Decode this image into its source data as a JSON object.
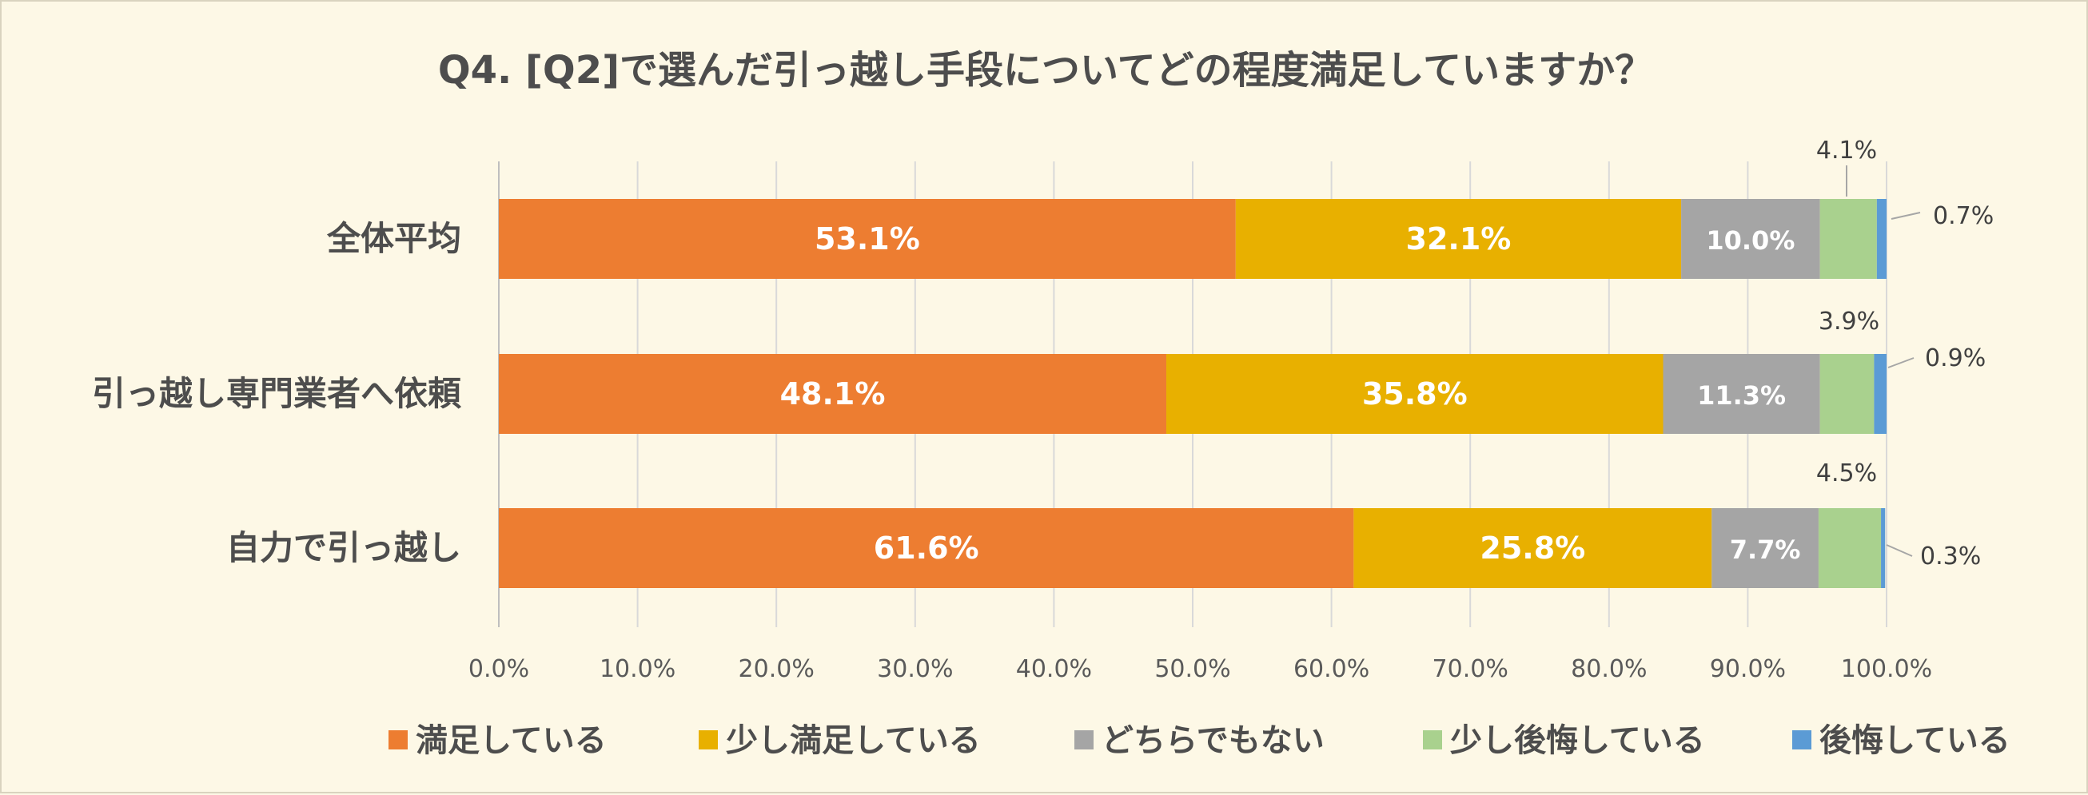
{
  "chart_data": {
    "type": "bar",
    "orientation": "horizontal",
    "stacked": true,
    "title": "Q4. [Q2]で選んだ引っ越し手段についてどの程度満足していますか？",
    "categories": [
      "全体平均",
      "引っ越し専門業者へ依頼",
      "自力で引っ越し"
    ],
    "series": [
      {
        "name": "満足している",
        "color": "#ed7d31",
        "values": [
          53.1,
          48.1,
          61.6
        ]
      },
      {
        "name": "少し満足している",
        "color": "#e8b000",
        "values": [
          32.1,
          35.8,
          25.8
        ]
      },
      {
        "name": "どちらでもない",
        "color": "#a5a5a5",
        "values": [
          10.0,
          11.3,
          7.7
        ]
      },
      {
        "name": "少し後悔している",
        "color": "#a9d18e",
        "values": [
          4.1,
          3.9,
          4.5
        ]
      },
      {
        "name": "後悔している",
        "color": "#5b9bd5",
        "values": [
          0.7,
          0.9,
          0.3
        ]
      }
    ],
    "value_labels": [
      [
        "53.1%",
        "32.1%",
        "10.0%",
        "4.1%",
        "0.7%"
      ],
      [
        "48.1%",
        "35.8%",
        "11.3%",
        "3.9%",
        "0.9%"
      ],
      [
        "61.6%",
        "25.8%",
        "7.7%",
        "4.5%",
        "0.3%"
      ]
    ],
    "xlim": [
      0,
      100
    ],
    "xticks": [
      "0.0%",
      "10.0%",
      "20.0%",
      "30.0%",
      "40.0%",
      "50.0%",
      "60.0%",
      "70.0%",
      "80.0%",
      "90.0%",
      "100.0%"
    ],
    "grid": true,
    "legend": "bottom"
  }
}
